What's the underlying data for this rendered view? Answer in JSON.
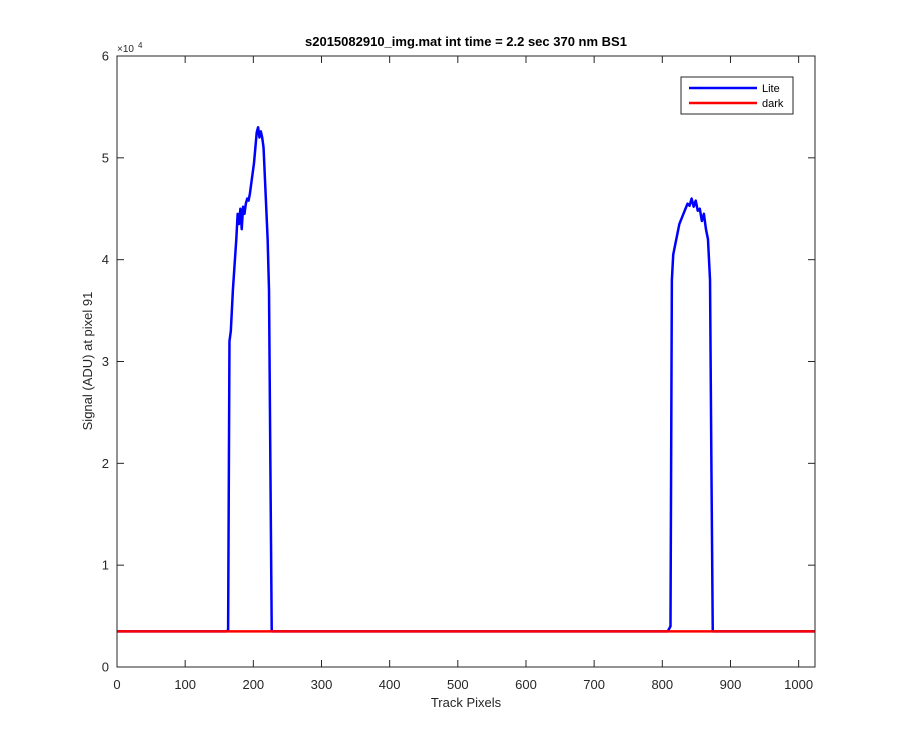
{
  "chart_data": {
    "type": "line",
    "title": "s2015082910_img.mat int time = 2.2 sec  370 nm BS1",
    "xlabel": "Track Pixels",
    "ylabel": "Signal (ADU) at pixel 91",
    "xlim": [
      0,
      1024
    ],
    "ylim": [
      0,
      60000
    ],
    "xticks": [
      0,
      100,
      200,
      300,
      400,
      500,
      600,
      700,
      800,
      900,
      1000
    ],
    "yticks": [
      0,
      10000,
      20000,
      30000,
      40000,
      50000,
      60000
    ],
    "ytick_labels": [
      "0",
      "1",
      "2",
      "3",
      "4",
      "5",
      "6"
    ],
    "y_exponent_label": "×10",
    "y_exponent_power": "4",
    "grid": false,
    "legend_position": "top-right",
    "series": [
      {
        "name": "Lite",
        "color": "#0000ff",
        "points": [
          [
            0,
            3500
          ],
          [
            160,
            3500
          ],
          [
            163,
            3600
          ],
          [
            165,
            32000
          ],
          [
            167,
            33000
          ],
          [
            170,
            37000
          ],
          [
            173,
            40000
          ],
          [
            175,
            42000
          ],
          [
            177,
            44500
          ],
          [
            179,
            43500
          ],
          [
            181,
            45000
          ],
          [
            183,
            43000
          ],
          [
            185,
            45200
          ],
          [
            187,
            44500
          ],
          [
            189,
            45500
          ],
          [
            191,
            46000
          ],
          [
            193,
            45800
          ],
          [
            195,
            46500
          ],
          [
            197,
            47500
          ],
          [
            199,
            48500
          ],
          [
            201,
            49500
          ],
          [
            203,
            51000
          ],
          [
            205,
            52500
          ],
          [
            207,
            53000
          ],
          [
            209,
            52000
          ],
          [
            211,
            52600
          ],
          [
            213,
            52000
          ],
          [
            215,
            51000
          ],
          [
            217,
            48000
          ],
          [
            219,
            45000
          ],
          [
            221,
            42000
          ],
          [
            223,
            37000
          ],
          [
            225,
            20000
          ],
          [
            227,
            3500
          ],
          [
            229,
            3500
          ],
          [
            808,
            3500
          ],
          [
            812,
            4000
          ],
          [
            814,
            38000
          ],
          [
            816,
            40500
          ],
          [
            819,
            41500
          ],
          [
            822,
            42500
          ],
          [
            825,
            43500
          ],
          [
            828,
            44000
          ],
          [
            831,
            44500
          ],
          [
            834,
            45000
          ],
          [
            837,
            45500
          ],
          [
            840,
            45300
          ],
          [
            843,
            46000
          ],
          [
            846,
            45200
          ],
          [
            849,
            45800
          ],
          [
            852,
            44800
          ],
          [
            855,
            45000
          ],
          [
            858,
            43800
          ],
          [
            861,
            44500
          ],
          [
            864,
            43000
          ],
          [
            867,
            42000
          ],
          [
            870,
            38000
          ],
          [
            872,
            20000
          ],
          [
            874,
            3500
          ],
          [
            1024,
            3500
          ]
        ]
      },
      {
        "name": "dark",
        "color": "#ff0000",
        "points": [
          [
            0,
            3500
          ],
          [
            1024,
            3500
          ]
        ]
      }
    ]
  }
}
